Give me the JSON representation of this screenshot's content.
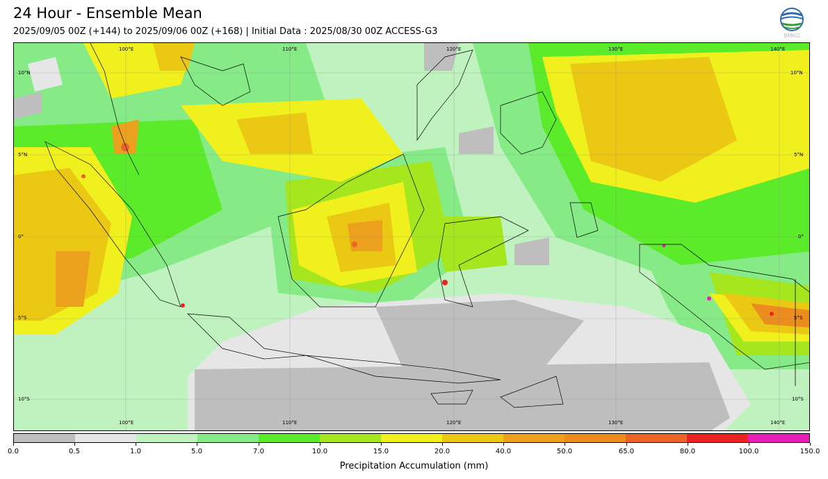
{
  "header": {
    "title": "24 Hour - Ensemble Mean",
    "subtitle": "2025/09/05 00Z (+144) to 2025/09/06 00Z (+168) | Initial Data : 2025/08/30 00Z ACCESS-G3",
    "logo_text": "BMKG"
  },
  "map": {
    "lon_labels": [
      "100°E",
      "110°E",
      "120°E",
      "130°E",
      "140°E"
    ],
    "lat_labels": [
      "10°N",
      "5°N",
      "0°",
      "5°S",
      "10°S"
    ],
    "grid_lines": true,
    "region": "Indonesia"
  },
  "colorbar": {
    "title": "Precipitation Accumulation (mm)",
    "ticks": [
      "0.0",
      "0.5",
      "1.0",
      "5.0",
      "7.0",
      "10.0",
      "15.0",
      "20.0",
      "40.0",
      "50.0",
      "65.0",
      "80.0",
      "100.0",
      "150.0"
    ],
    "colors": [
      "#bebebe",
      "#e6e6e6",
      "#bff2bf",
      "#86eb86",
      "#5ceb2a",
      "#a5e61e",
      "#f0f01e",
      "#ebc814",
      "#eba01e",
      "#eb8c1e",
      "#eb6428",
      "#eb2323",
      "#e61eb4"
    ]
  }
}
